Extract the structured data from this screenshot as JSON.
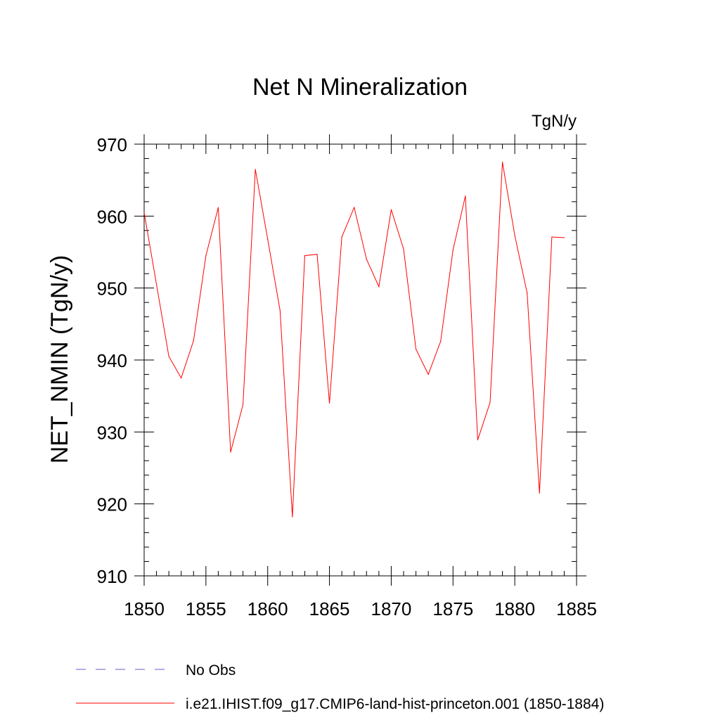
{
  "chart_data": {
    "type": "line",
    "title": "Net N Mineralization",
    "units_label": "TgN/y",
    "ylabel": "NET_NMIN  (TgN/y)",
    "xlabel": "",
    "xlim": [
      1850,
      1885
    ],
    "ylim": [
      910,
      970
    ],
    "x_ticks": [
      1850,
      1855,
      1860,
      1865,
      1870,
      1875,
      1880,
      1885
    ],
    "y_ticks": [
      910,
      920,
      930,
      940,
      950,
      960,
      970
    ],
    "grid": false,
    "x": [
      1850,
      1851,
      1852,
      1853,
      1854,
      1855,
      1856,
      1857,
      1858,
      1859,
      1860,
      1861,
      1862,
      1863,
      1864,
      1865,
      1866,
      1867,
      1868,
      1869,
      1870,
      1871,
      1872,
      1873,
      1874,
      1875,
      1876,
      1877,
      1878,
      1879,
      1880,
      1881,
      1882,
      1883,
      1884
    ],
    "series": [
      {
        "name": "i.e21.IHIST.f09_g17.CMIP6-land-hist-princeton.001 (1850-1884)",
        "color": "#ff0000",
        "values": [
          960.5,
          950.5,
          940.5,
          937.5,
          942.7,
          954.5,
          961.2,
          927.2,
          933.8,
          966.5,
          956.8,
          946.9,
          918.2,
          954.5,
          954.7,
          934.0,
          957.1,
          961.2,
          954.0,
          950.2,
          960.9,
          955.4,
          941.5,
          938.0,
          942.6,
          955.3,
          962.8,
          928.9,
          934.1,
          967.5,
          957.3,
          949.3,
          921.5,
          957.1,
          957.0
        ]
      }
    ],
    "legend": [
      {
        "label": "No Obs",
        "color": "#6a5acd",
        "style": "dashed"
      },
      {
        "label": "i.e21.IHIST.f09_g17.CMIP6-land-hist-princeton.001 (1850-1884)",
        "color": "#ff0000",
        "style": "solid"
      }
    ],
    "legend_position": "bottom"
  }
}
